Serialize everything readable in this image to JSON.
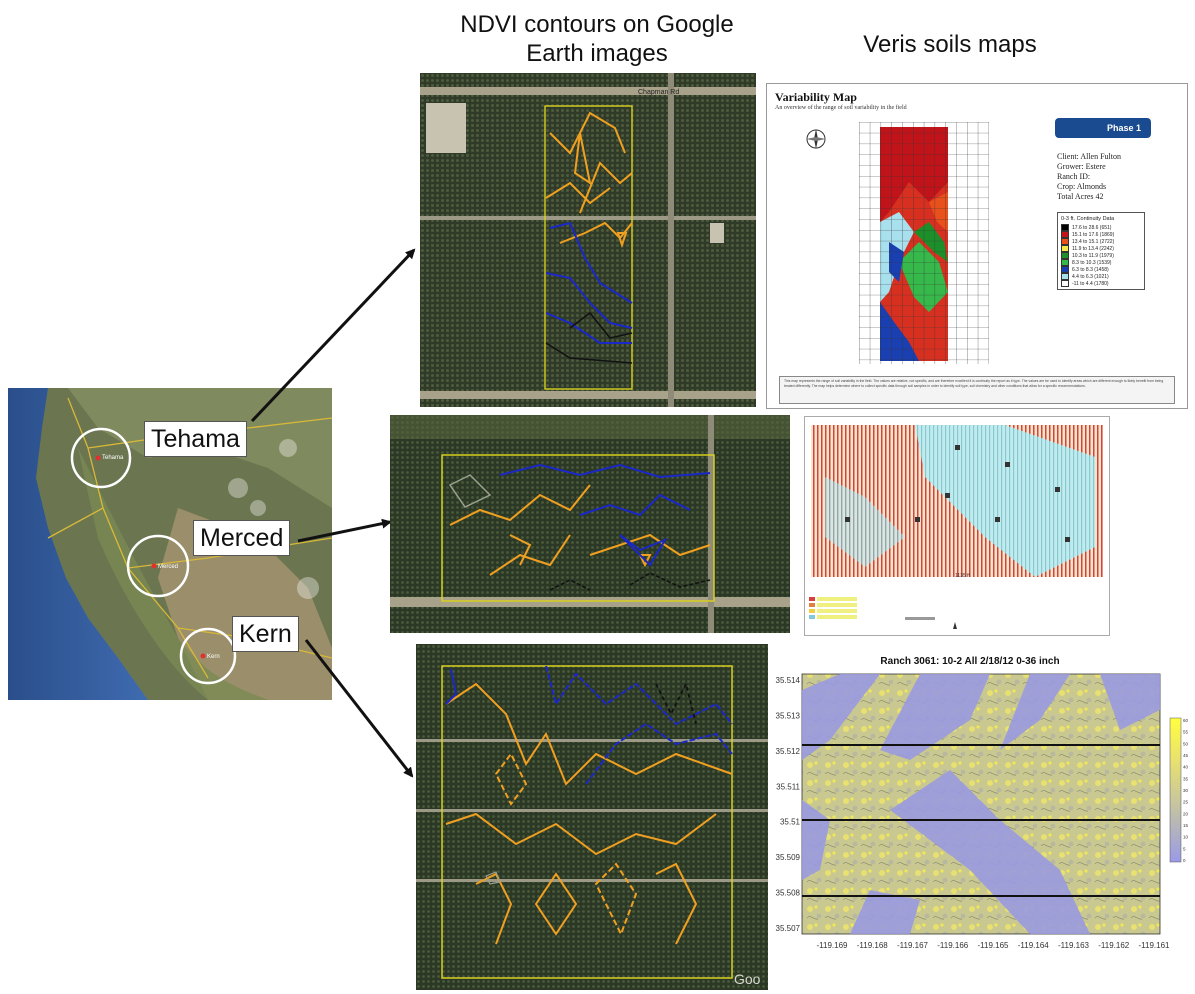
{
  "headings": {
    "ndvi": "NDVI contours on Google Earth images",
    "veris": "Veris soils maps"
  },
  "locations": [
    {
      "label": "Tehama",
      "map_text": "Tehama"
    },
    {
      "label": "Merced",
      "map_text": "Merced"
    },
    {
      "label": "Kern",
      "map_text": "Kern"
    }
  ],
  "top_ge": {
    "road_label": "Chapman Rd"
  },
  "variability_map": {
    "title": "Variability Map",
    "subtitle": "An overview of the range of soil variability in the field",
    "badge": "Phase 1",
    "info": [
      "Client: Allen Fulton",
      "Grower: Estere",
      "Ranch ID:",
      "Crop: Almonds",
      "Total Acres  42"
    ],
    "legend_title": "0-3 ft. Continuity Data",
    "legend_items": [
      {
        "text": "17.6 to 28.6   (651)",
        "color": "#000000"
      },
      {
        "text": "15.1 to 17.6   (1869)",
        "color": "#c0141a"
      },
      {
        "text": "13.4 to 15.1   (2722)",
        "color": "#e8501c"
      },
      {
        "text": "11.9 to 13.4   (2242)",
        "color": "#f5e74a"
      },
      {
        "text": "10.3 to 11.9   (1979)",
        "color": "#1d8f2a"
      },
      {
        "text": "8.3 to 10.3   (1539)",
        "color": "#36b84a"
      },
      {
        "text": "6.3 to  8.3   (1458)",
        "color": "#1a3fb0"
      },
      {
        "text": "4.4 to  6.3   (1021)",
        "color": "#a8e0ee"
      },
      {
        "text": "-11  to  4.4   (1780)",
        "color": "#ffffff"
      }
    ],
    "footer": "This map represents the range of soil variability in the field. The values are relative, not specific, and are therefore excellent it is continuity the report as it type. The values are be used to identify areas which are different enough to likely benefit from being treated differently. The map helps determine where to collect specific data through soil samples in order to identify soil type, soil chemistry and other conditions that allow for a specific recommendations."
  },
  "middle_veris": {
    "scale_label": "1135 ft"
  },
  "kern_chart": {
    "title": "Ranch 3061:  10-2 All  2/18/12  0-36 inch",
    "y_ticks": [
      "35.514",
      "35.513",
      "35.512",
      "35.511",
      "35.51",
      "35.509",
      "35.508",
      "35.507"
    ],
    "x_ticks": [
      "-119.169",
      "-119.168",
      "-119.167",
      "-119.166",
      "-119.165",
      "-119.164",
      "-119.163",
      "-119.162",
      "-119.161"
    ],
    "colorbar_ticks": [
      "60",
      "55",
      "50",
      "45",
      "40",
      "35",
      "30",
      "25",
      "20",
      "15",
      "10",
      "5",
      "0"
    ]
  },
  "watermark": "Goo",
  "colors": {
    "ndvi_orange": "#f0a020",
    "ndvi_blue": "#1a28c8",
    "ndvi_black": "#111111",
    "field_outline": "#d8d020"
  }
}
